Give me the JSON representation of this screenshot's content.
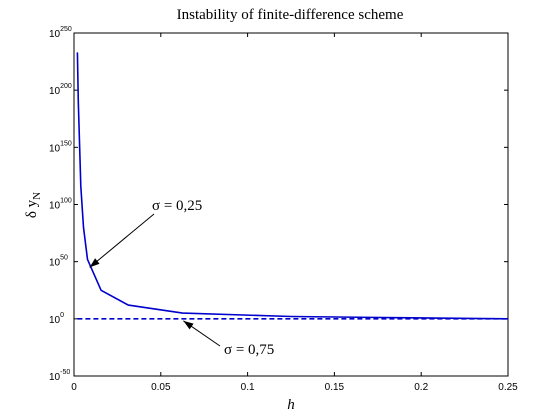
{
  "chart_data": {
    "type": "line",
    "title": "Instability of finite-difference scheme",
    "xlabel": "h",
    "ylabel": "δ y_N",
    "ylabel_parts": {
      "main": "δ y",
      "sub": "N"
    },
    "x_scale": "linear",
    "y_scale": "log",
    "xlim": [
      0,
      0.25
    ],
    "ylim_log10": [
      -50,
      250
    ],
    "grid": false,
    "x_ticks": [
      "0",
      "0.05",
      "0.1",
      "0.15",
      "0.2",
      "0.25"
    ],
    "x_tick_values": [
      0,
      0.05,
      0.1,
      0.15,
      0.2,
      0.25
    ],
    "y_ticks": [
      {
        "base": "10",
        "exp": "250",
        "log10": 250
      },
      {
        "base": "10",
        "exp": "200",
        "log10": 200
      },
      {
        "base": "10",
        "exp": "150",
        "log10": 150
      },
      {
        "base": "10",
        "exp": "100",
        "log10": 100
      },
      {
        "base": "10",
        "exp": "50",
        "log10": 50
      },
      {
        "base": "10",
        "exp": "0",
        "log10": 0
      },
      {
        "base": "10",
        "exp": "-50",
        "log10": -50
      }
    ],
    "series": [
      {
        "name": "σ = 0,25",
        "style": "solid",
        "color": "#0000cc",
        "x": [
          0.00195,
          0.0025,
          0.0039,
          0.0055,
          0.0078,
          0.0156,
          0.03125,
          0.0625,
          0.125,
          0.1875,
          0.25
        ],
        "y_log10": [
          233,
          190,
          116,
          80,
          52,
          25,
          12,
          5,
          2,
          1,
          0
        ]
      },
      {
        "name": "σ = 0,75",
        "style": "dashed",
        "color": "#0000cc",
        "x": [
          0.00195,
          0.25
        ],
        "y_log10": [
          0,
          0
        ]
      }
    ],
    "annotations": [
      {
        "text": "σ = 0,25",
        "series": 0,
        "arrow_to": {
          "x": 0.009,
          "y_log10": 45
        }
      },
      {
        "text": "σ = 0,75",
        "series": 1,
        "arrow_to": {
          "x": 0.063,
          "y_log10": 0
        }
      }
    ]
  }
}
